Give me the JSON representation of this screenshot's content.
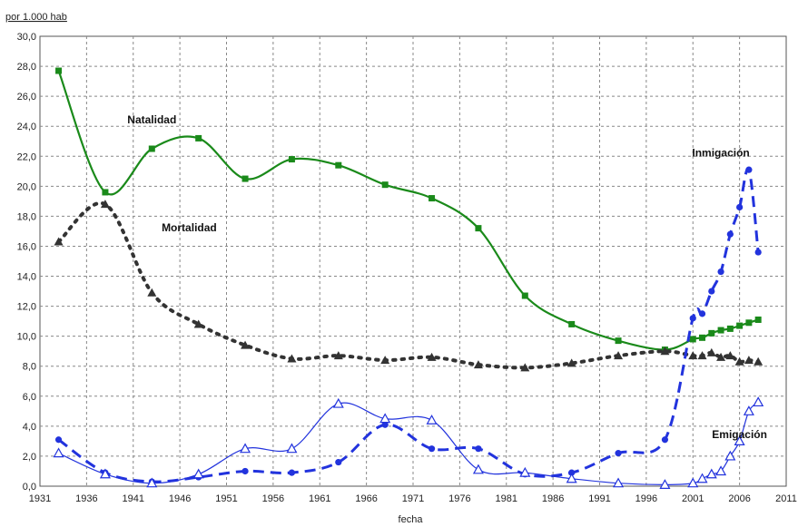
{
  "chart_data": {
    "type": "line",
    "ylabel_unit": "por 1.000 hab",
    "xlabel": "fecha",
    "xlim": [
      1931,
      2011
    ],
    "ylim": [
      0,
      30
    ],
    "grid": true,
    "x_ticks": [
      "1931",
      "1936",
      "1941",
      "1946",
      "1951",
      "1956",
      "1961",
      "1966",
      "1971",
      "1976",
      "1981",
      "1986",
      "1991",
      "1996",
      "2001",
      "2006",
      "2011"
    ],
    "y_ticks": [
      "0,0",
      "2,0",
      "4,0",
      "6,0",
      "8,0",
      "10,0",
      "12,0",
      "14,0",
      "16,0",
      "18,0",
      "20,0",
      "22,0",
      "24,0",
      "26,0",
      "28,0",
      "30,0"
    ],
    "series": [
      {
        "name": "Natalidad",
        "color": "#1a8a1a",
        "marker": "square",
        "line_style": "solid",
        "x": [
          1933,
          1938,
          1943,
          1948,
          1953,
          1958,
          1963,
          1968,
          1973,
          1978,
          1983,
          1988,
          1993,
          1998,
          2001,
          2002,
          2003,
          2004,
          2005,
          2006,
          2007,
          2008
        ],
        "y": [
          27.7,
          19.6,
          22.5,
          23.2,
          20.5,
          21.8,
          21.4,
          20.1,
          19.2,
          17.2,
          12.7,
          10.8,
          9.7,
          9.1,
          9.8,
          9.9,
          10.2,
          10.4,
          10.5,
          10.7,
          10.9,
          11.1
        ]
      },
      {
        "name": "Mortalidad",
        "color": "#333333",
        "marker": "triangle",
        "line_style": "dotted",
        "x": [
          1933,
          1938,
          1943,
          1948,
          1953,
          1958,
          1963,
          1968,
          1973,
          1978,
          1983,
          1988,
          1993,
          1998,
          2001,
          2002,
          2003,
          2004,
          2005,
          2006,
          2007,
          2008
        ],
        "y": [
          16.3,
          18.8,
          12.9,
          10.8,
          9.4,
          8.5,
          8.7,
          8.4,
          8.6,
          8.1,
          7.9,
          8.2,
          8.7,
          9.0,
          8.7,
          8.7,
          8.9,
          8.6,
          8.7,
          8.3,
          8.4,
          8.3
        ]
      },
      {
        "name": "Inmigación",
        "color": "#2233dd",
        "marker": "circle",
        "line_style": "dashed",
        "x": [
          1933,
          1938,
          1943,
          1948,
          1953,
          1958,
          1963,
          1968,
          1973,
          1978,
          1983,
          1988,
          1993,
          1998,
          2001,
          2002,
          2003,
          2004,
          2005,
          2006,
          2007,
          2008
        ],
        "y": [
          3.1,
          0.9,
          0.3,
          0.6,
          1.0,
          0.9,
          1.6,
          4.1,
          2.5,
          2.5,
          0.8,
          0.9,
          2.2,
          3.1,
          11.2,
          11.5,
          13.0,
          14.3,
          16.8,
          18.6,
          21.1,
          15.6
        ]
      },
      {
        "name": "Emigación",
        "color": "#2233dd",
        "marker": "open-triangle",
        "line_style": "thin",
        "x": [
          1933,
          1938,
          1943,
          1948,
          1953,
          1958,
          1963,
          1968,
          1973,
          1978,
          1983,
          1988,
          1993,
          1998,
          2001,
          2002,
          2003,
          2004,
          2005,
          2006,
          2007,
          2008
        ],
        "y": [
          2.2,
          0.8,
          0.2,
          0.8,
          2.5,
          2.5,
          5.5,
          4.5,
          4.4,
          1.1,
          0.9,
          0.5,
          0.2,
          0.1,
          0.2,
          0.5,
          0.8,
          1.0,
          2.0,
          3.0,
          5.0,
          5.6
        ]
      }
    ],
    "annotations": [
      {
        "text": "Natalidad",
        "x": 1943,
        "y": 24.2
      },
      {
        "text": "Mortalidad",
        "x": 1947,
        "y": 17.0
      },
      {
        "text": "Inmigación",
        "x": 2004,
        "y": 22.0
      },
      {
        "text": "Emigación",
        "x": 2006,
        "y": 3.2
      }
    ]
  }
}
